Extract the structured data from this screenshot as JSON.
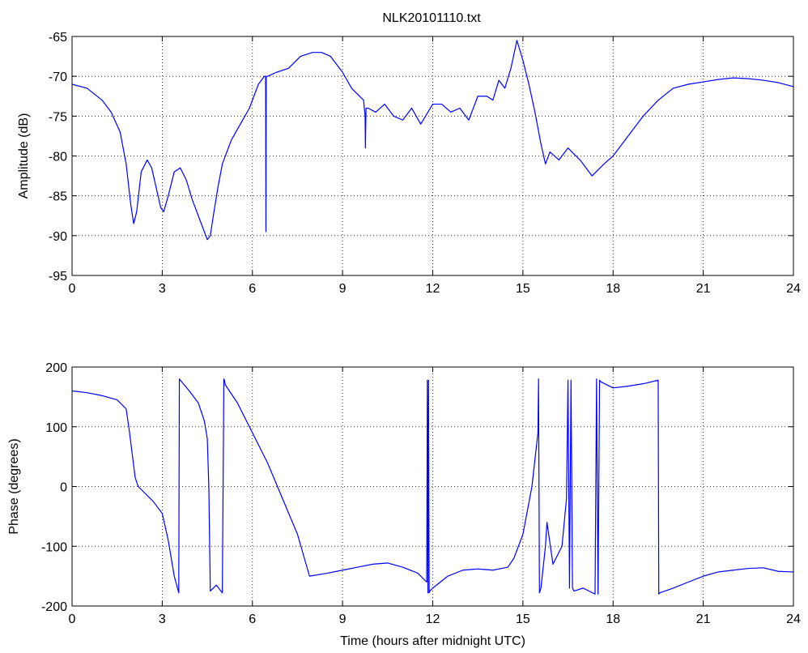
{
  "title": "NLK20101110.txt",
  "colors": {
    "series": "#0000ff",
    "axes": "#000000",
    "grid": "#000000",
    "background": "#ffffff"
  },
  "chart_data": [
    {
      "type": "line",
      "title": "NLK20101110.txt",
      "xlabel": "",
      "ylabel": "Amplitude (dB)",
      "xlim": [
        0,
        24
      ],
      "ylim": [
        -95,
        -65
      ],
      "xticks": [
        0,
        3,
        6,
        9,
        12,
        15,
        18,
        21,
        24
      ],
      "yticks": [
        -95,
        -90,
        -85,
        -80,
        -75,
        -70,
        -65
      ],
      "grid": true,
      "series": [
        {
          "x": [
            0,
            0.5,
            1.0,
            1.3,
            1.6,
            1.8,
            1.95,
            2.05,
            2.15,
            2.3,
            2.5,
            2.65,
            2.8,
            2.95,
            3.05,
            3.2,
            3.4,
            3.6,
            3.8,
            4.0,
            4.2,
            4.35,
            4.5,
            4.6,
            4.7,
            4.85,
            5.0,
            5.3,
            5.6,
            5.9,
            6.2,
            6.4,
            6.44,
            6.45,
            6.46,
            6.5,
            6.8,
            7.2,
            7.6,
            8.0,
            8.3,
            8.6,
            9.0,
            9.3,
            9.7,
            9.75,
            9.76,
            9.78,
            9.85,
            10.1,
            10.4,
            10.7,
            11.0,
            11.3,
            11.6,
            12.0,
            12.3,
            12.6,
            12.9,
            13.2,
            13.5,
            13.8,
            14.0,
            14.2,
            14.4,
            14.6,
            14.8,
            15.0,
            15.2,
            15.4,
            15.6,
            15.75,
            15.9,
            16.2,
            16.5,
            16.9,
            17.3,
            17.7,
            18.0,
            18.5,
            19.0,
            19.5,
            20.0,
            20.5,
            21.0,
            21.5,
            22.0,
            22.5,
            23.0,
            23.5,
            24.0
          ],
          "values": [
            -71.0,
            -71.5,
            -73.0,
            -74.5,
            -77.0,
            -81.0,
            -86.0,
            -88.5,
            -87.0,
            -82.0,
            -80.5,
            -81.5,
            -84.0,
            -86.5,
            -87.0,
            -85.0,
            -82.0,
            -81.5,
            -83.0,
            -85.5,
            -87.5,
            -89.0,
            -90.5,
            -90.0,
            -87.5,
            -84.0,
            -81.0,
            -78.0,
            -76.0,
            -74.0,
            -71.0,
            -70.0,
            -70.0,
            -89.5,
            -70.0,
            -70.0,
            -69.5,
            -69.0,
            -67.5,
            -67.0,
            -67.0,
            -67.5,
            -69.5,
            -71.5,
            -73.0,
            -75.0,
            -79.0,
            -74.0,
            -74.0,
            -74.5,
            -73.5,
            -75.0,
            -75.5,
            -74.0,
            -76.0,
            -73.5,
            -73.5,
            -74.5,
            -74.0,
            -75.5,
            -72.5,
            -72.5,
            -73.0,
            -70.5,
            -71.5,
            -69.0,
            -65.5,
            -68.0,
            -71.0,
            -74.5,
            -78.5,
            -81.0,
            -79.5,
            -80.5,
            -79.0,
            -80.5,
            -82.5,
            -81.0,
            -80.0,
            -77.5,
            -75.0,
            -73.0,
            -71.5,
            -71.0,
            -70.7,
            -70.4,
            -70.2,
            -70.3,
            -70.5,
            -70.8,
            -71.3
          ]
        }
      ]
    },
    {
      "type": "line",
      "title": "",
      "xlabel": "Time (hours after midnight UTC)",
      "ylabel": "Phase (degrees)",
      "xlim": [
        0,
        24
      ],
      "ylim": [
        -200,
        200
      ],
      "xticks": [
        0,
        3,
        6,
        9,
        12,
        15,
        18,
        21,
        24
      ],
      "yticks": [
        -200,
        -100,
        0,
        100,
        200
      ],
      "grid": true,
      "series": [
        {
          "x": [
            0,
            0.5,
            1.0,
            1.5,
            1.8,
            1.9,
            2.0,
            2.1,
            2.2,
            2.4,
            2.7,
            3.0,
            3.2,
            3.4,
            3.55,
            3.57,
            3.6,
            3.9,
            4.2,
            4.4,
            4.5,
            4.55,
            4.6,
            4.8,
            5.0,
            5.05,
            5.07,
            5.1,
            5.5,
            6.0,
            6.5,
            7.0,
            7.5,
            7.9,
            8.5,
            9.0,
            9.5,
            10.0,
            10.5,
            11.0,
            11.5,
            11.8,
            11.82,
            11.84,
            11.86,
            11.88,
            11.9,
            12.0,
            12.5,
            13.0,
            13.5,
            14.0,
            14.5,
            14.7,
            15.0,
            15.3,
            15.5,
            15.52,
            15.55,
            15.6,
            15.75,
            15.8,
            16.0,
            16.3,
            16.45,
            16.5,
            16.55,
            16.6,
            16.65,
            16.7,
            17.0,
            17.4,
            17.45,
            17.5,
            17.55,
            17.6,
            18.0,
            18.5,
            19.0,
            19.5,
            19.52,
            19.55,
            20.0,
            20.5,
            21.0,
            21.5,
            22.0,
            22.5,
            23.0,
            23.5,
            24.0
          ],
          "values": [
            160,
            157,
            152,
            145,
            130,
            95,
            55,
            15,
            0,
            -10,
            -25,
            -45,
            -90,
            -150,
            -178,
            180,
            178,
            160,
            140,
            110,
            80,
            0,
            -175,
            -165,
            -178,
            180,
            178,
            170,
            140,
            90,
            40,
            -20,
            -80,
            -150,
            -145,
            -140,
            -135,
            -130,
            -128,
            -135,
            -145,
            -160,
            178,
            -178,
            178,
            -178,
            -175,
            -170,
            -150,
            -140,
            -138,
            -140,
            -135,
            -120,
            -80,
            0,
            90,
            180,
            -178,
            -170,
            -100,
            -60,
            -130,
            -100,
            -20,
            178,
            -170,
            178,
            -170,
            -175,
            -170,
            -180,
            180,
            -180,
            178,
            175,
            165,
            168,
            172,
            178,
            -180,
            -178,
            -170,
            -160,
            -150,
            -143,
            -140,
            -137,
            -136,
            -142,
            -143
          ]
        }
      ]
    }
  ]
}
